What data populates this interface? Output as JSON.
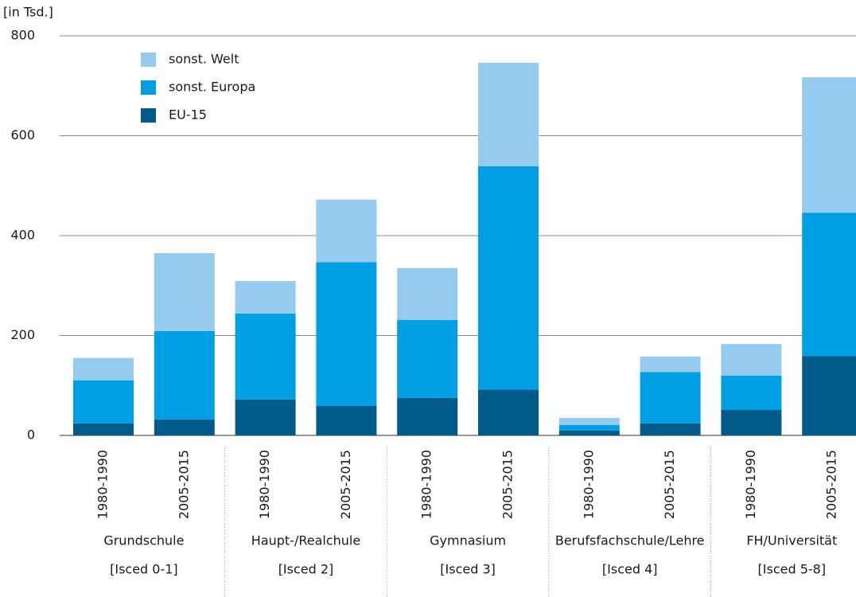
{
  "chart_data": {
    "type": "stacked-bar",
    "y_label": "[in Tsd.]",
    "categories": [
      "1980-1990",
      "2005-2015",
      "1980-1990",
      "2005-2015",
      "1980-1990",
      "2005-2015",
      "1980-1990",
      "2005-2015",
      "1980-1990",
      "2005-2015"
    ],
    "groups": [
      {
        "name": "Grundschule",
        "code": "[Isced 0-1]"
      },
      {
        "name": "Haupt-/Realchule",
        "code": "[Isced 2]"
      },
      {
        "name": "Gymnasium",
        "code": "[Isced 3]"
      },
      {
        "name": "Berufsfachschule/Lehre",
        "code": "[Isced 4]"
      },
      {
        "name": "FH/Universität",
        "code": "[Isced 5-8]"
      }
    ],
    "series": [
      {
        "name": "EU-15",
        "color": "#005b8a",
        "values": [
          24,
          32,
          72,
          59,
          75,
          92,
          10,
          24,
          51,
          159
        ]
      },
      {
        "name": "sonst. Europa",
        "color": "#009fe3",
        "values": [
          86,
          177,
          172,
          288,
          156,
          447,
          11,
          103,
          69,
          287
        ]
      },
      {
        "name": "sonst. Welt",
        "color": "#94cbee",
        "values": [
          45,
          156,
          65,
          125,
          104,
          207,
          14,
          31,
          63,
          271
        ]
      }
    ],
    "ylim": [
      0,
      800
    ],
    "yticks": [
      0,
      200,
      400,
      600,
      800
    ],
    "grid": true
  }
}
